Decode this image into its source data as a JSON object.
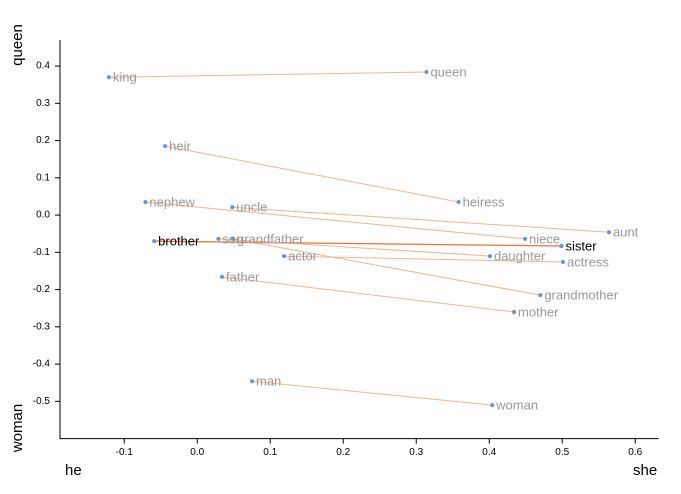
{
  "chart_data": {
    "type": "scatter",
    "y_top_label": "queen",
    "y_bottom_label": "woman",
    "x_left_label": "he",
    "x_right_label": "she",
    "xlim": [
      -0.188,
      0.632
    ],
    "ylim": [
      -0.6,
      0.47
    ],
    "xticks": [
      -0.1,
      {
        "value": 0,
        "label": "0.0"
      },
      0.1,
      0.2,
      0.3,
      0.4,
      0.5,
      0.6
    ],
    "yticks": [
      0.4,
      0.3,
      0.2,
      0.1,
      {
        "value": 0,
        "label": "0.0"
      },
      -0.1,
      -0.2,
      -0.3,
      -0.4,
      -0.5
    ],
    "point_color": "#6d8fd6",
    "line_color": "#f6b391",
    "highlight_color": "#e8743b",
    "pairs": [
      {
        "a": {
          "label": "king",
          "x": -0.121,
          "y": 0.37
        },
        "b": {
          "label": "queen",
          "x": 0.314,
          "y": 0.384
        }
      },
      {
        "a": {
          "label": "heir",
          "x": -0.044,
          "y": 0.185
        },
        "b": {
          "label": "heiress",
          "x": 0.358,
          "y": 0.035
        }
      },
      {
        "a": {
          "label": "nephew",
          "x": -0.071,
          "y": 0.035
        },
        "b": {
          "label": "niece",
          "x": 0.449,
          "y": -0.064
        }
      },
      {
        "a": {
          "label": "uncle",
          "x": 0.048,
          "y": 0.021
        },
        "b": {
          "label": "aunt",
          "x": 0.564,
          "y": -0.046
        }
      },
      {
        "a": {
          "label": "brother",
          "x": -0.059,
          "y": -0.07
        },
        "b": {
          "label": "sister",
          "x": 0.499,
          "y": -0.083
        },
        "highlight": true
      },
      {
        "a": {
          "label": "son",
          "x": 0.029,
          "y": -0.064
        },
        "b": {
          "label": "daughter",
          "x": 0.401,
          "y": -0.11
        }
      },
      {
        "a": {
          "label": "grandfather",
          "x": 0.049,
          "y": -0.064
        },
        "b": {
          "label": "grandmother",
          "x": 0.47,
          "y": -0.215
        }
      },
      {
        "a": {
          "label": "actor",
          "x": 0.119,
          "y": -0.11
        },
        "b": {
          "label": "actress",
          "x": 0.501,
          "y": -0.126
        }
      },
      {
        "a": {
          "label": "father",
          "x": 0.034,
          "y": -0.166
        },
        "b": {
          "label": "mother",
          "x": 0.434,
          "y": -0.26
        }
      },
      {
        "a": {
          "label": "man",
          "x": 0.075,
          "y": -0.446
        },
        "b": {
          "label": "woman",
          "x": 0.404,
          "y": -0.51
        }
      }
    ]
  }
}
